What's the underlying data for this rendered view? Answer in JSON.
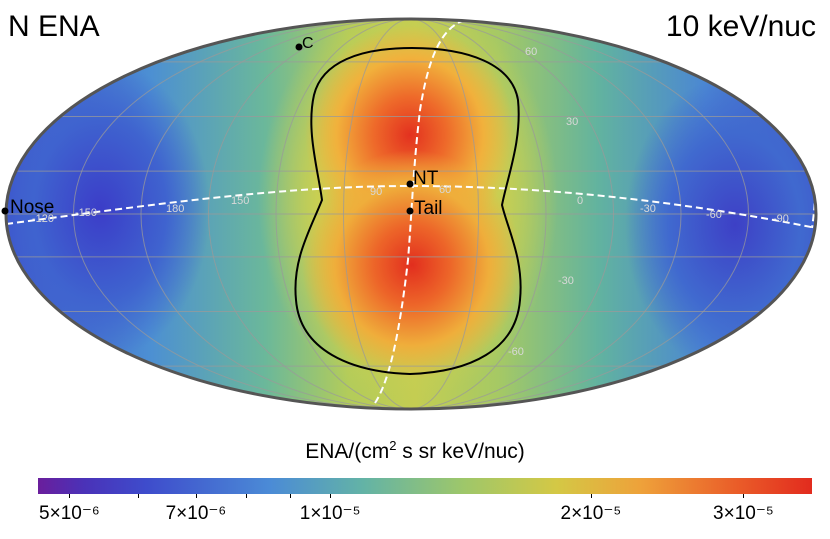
{
  "header": {
    "title_left": "N ENA",
    "title_right": "10 keV/nuc"
  },
  "map": {
    "projection": "mollweide",
    "colors": {
      "low": "#3a3fc4",
      "mid": "#66b59a",
      "high": "#e5331f",
      "outline": "#555555",
      "grid": "#9a9a9a",
      "dashed_line": "#ffffff",
      "contour": "#000000"
    },
    "longitude_labels": [
      "-120",
      "-150",
      "180",
      "150",
      "90",
      "60",
      "0",
      "-30",
      "-60",
      "-90"
    ],
    "latitude_labels": [
      "60",
      "30",
      "-30",
      "-60"
    ],
    "markers": [
      {
        "id": "nose",
        "label": "Nose"
      },
      {
        "id": "nt",
        "label": "NT"
      },
      {
        "id": "tail",
        "label": "Tail"
      },
      {
        "id": "c",
        "label": "C"
      }
    ]
  },
  "colorbar": {
    "label_main": "ENA/(cm",
    "label_sup": "2",
    "label_rest": " s sr keV/nuc)",
    "scale": "log",
    "range": [
      4.6e-06,
      3.6e-05
    ],
    "ticks": [
      {
        "label": "5×10⁻⁶",
        "value": 5e-06
      },
      {
        "label": "7×10⁻⁶",
        "value": 7e-06
      },
      {
        "label": "1×10⁻⁵",
        "value": 1e-05
      },
      {
        "label": "2×10⁻⁵",
        "value": 2e-05
      },
      {
        "label": "3×10⁻⁵",
        "value": 3e-05
      }
    ]
  }
}
